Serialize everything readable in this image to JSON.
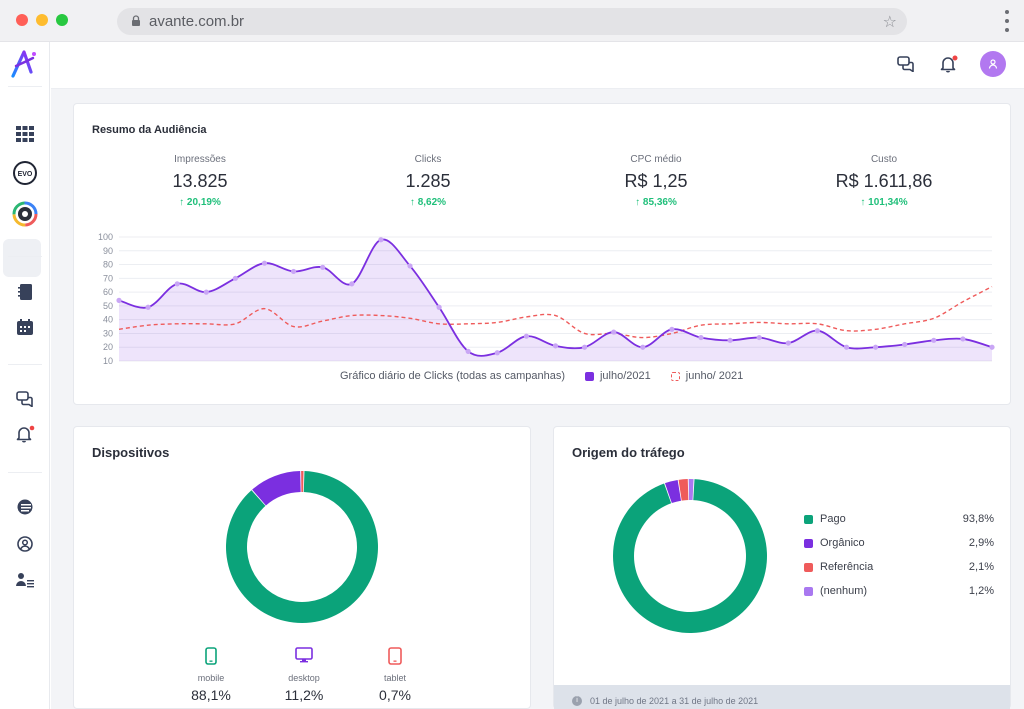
{
  "browser": {
    "url": "avante.com.br",
    "dot_colors": [
      "#ff5f57",
      "#febc2e",
      "#28c840"
    ]
  },
  "sidebar": {
    "items": [
      {
        "icon": "grid-icon"
      },
      {
        "icon": "evo-badge-icon",
        "label": "EVO"
      },
      {
        "icon": "analytics-logo-icon",
        "active": true
      },
      {
        "icon": "notebook-icon"
      },
      {
        "icon": "calendar-icon"
      },
      {
        "icon": "chat-icon"
      },
      {
        "icon": "bell-icon",
        "badge": true
      },
      {
        "icon": "database-icon"
      },
      {
        "icon": "user-circle-icon"
      },
      {
        "icon": "user-list-icon"
      }
    ]
  },
  "topbar": {
    "icons": [
      "chat-icon",
      "bell-icon",
      "avatar"
    ],
    "avatar_color": "#b278f0",
    "notification_color": "#ef4444"
  },
  "audience": {
    "title": "Resumo da Audiência",
    "metrics": [
      {
        "label": "Impressões",
        "value": "13.825",
        "change": "↑ 20,19%"
      },
      {
        "label": "Clicks",
        "value": "1.285",
        "change": "↑ 8,62%"
      },
      {
        "label": "CPC médio",
        "value": "R$ 1,25",
        "change": "↑ 85,36%"
      },
      {
        "label": "Custo",
        "value": "R$ 1.611,86",
        "change": "↑ 101,34%"
      }
    ],
    "legend_caption": "Gráfico diário de Clicks (todas as campanhas)",
    "series_1_label": "julho/2021",
    "series_2_label": "junho/ 2021"
  },
  "chart_data": {
    "type": "area",
    "title": "Gráfico diário de Clicks (todas as campanhas)",
    "ylim": [
      10,
      100
    ],
    "yticks": [
      10,
      20,
      30,
      40,
      50,
      60,
      70,
      80,
      90,
      100
    ],
    "grid": true,
    "legend_placement": "bottom",
    "series": [
      {
        "name": "julho/2021",
        "color": "#7b2fe0",
        "style": "solid-area",
        "values": [
          54,
          49,
          66,
          60,
          70,
          81,
          75,
          78,
          66,
          98,
          79,
          49,
          17,
          16,
          28,
          21,
          20,
          31,
          20,
          33,
          27,
          25,
          27,
          23,
          32,
          20,
          20,
          22,
          25,
          26,
          20
        ]
      },
      {
        "name": "junho/ 2021",
        "color": "#ef5b5b",
        "style": "dashed",
        "values": [
          33,
          36,
          37,
          37,
          37,
          48,
          35,
          39,
          43,
          43,
          41,
          37,
          37,
          38,
          42,
          43,
          30,
          30,
          27,
          30,
          36,
          37,
          38,
          37,
          37,
          32,
          33,
          37,
          41,
          53,
          64
        ]
      }
    ]
  },
  "devices": {
    "title": "Dispositivos",
    "items": [
      {
        "name": "mobile",
        "percent": "88,1%",
        "value": 88.1,
        "color": "#0ba37a",
        "icon": "smartphone-icon"
      },
      {
        "name": "desktop",
        "percent": "11,2%",
        "value": 11.2,
        "color": "#7b2fe0",
        "icon": "monitor-icon"
      },
      {
        "name": "tablet",
        "percent": "0,7%",
        "value": 0.7,
        "color": "#ef5b5b",
        "icon": "tablet-icon"
      }
    ]
  },
  "traffic": {
    "title": "Origem do tráfego",
    "items": [
      {
        "name": "Pago",
        "percent": "93,8%",
        "value": 93.8,
        "color": "#0ba37a"
      },
      {
        "name": "Orgânico",
        "percent": "2,9%",
        "value": 2.9,
        "color": "#7b2fe0"
      },
      {
        "name": "Referência",
        "percent": "2,1%",
        "value": 2.1,
        "color": "#ef5b5b"
      },
      {
        "name": "(nenhum)",
        "percent": "1,2%",
        "value": 1.2,
        "color": "#a978f0"
      }
    ],
    "footer": "01 de julho de 2021 a 31 de julho de 2021"
  }
}
